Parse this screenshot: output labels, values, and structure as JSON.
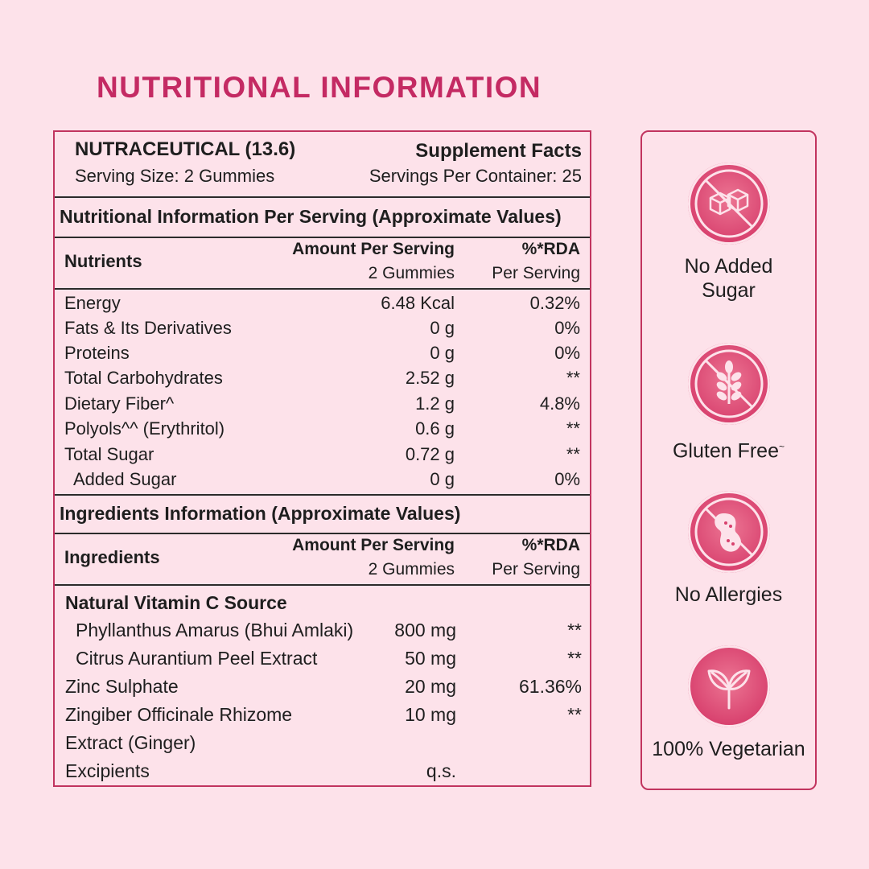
{
  "title": "NUTRITIONAL INFORMATION",
  "header": {
    "product": "NUTRACEUTICAL (13.6)",
    "serving_size": "Serving Size: 2 Gummies",
    "facts_label": "Supplement Facts",
    "servings_per_container": "Servings Per Container: 25"
  },
  "nutrition_section_title": "Nutritional Information Per Serving (Approximate Values)",
  "nutrition_columns": {
    "name": "Nutrients",
    "amount": "Amount Per Serving",
    "amount_sub": "2 Gummies",
    "rda": "%*RDA",
    "rda_sub": "Per Serving"
  },
  "nutrients": [
    {
      "name": "Energy",
      "amount": "6.48 Kcal",
      "rda": "0.32%"
    },
    {
      "name": "Fats & Its Derivatives",
      "amount": "0 g",
      "rda": "0%"
    },
    {
      "name": "Proteins",
      "amount": "0 g",
      "rda": "0%"
    },
    {
      "name": "Total Carbohydrates",
      "amount": "2.52 g",
      "rda": "**"
    },
    {
      "name": "Dietary Fiber^",
      "amount": "1.2 g",
      "rda": "4.8%"
    },
    {
      "name": "Polyols^^ (Erythritol)",
      "amount": "0.6 g",
      "rda": "**"
    },
    {
      "name": "Total Sugar",
      "amount": "0.72 g",
      "rda": "**"
    },
    {
      "name": "Added Sugar",
      "amount": "0 g",
      "rda": "0%"
    }
  ],
  "ingredients_section_title": "Ingredients Information (Approximate Values)",
  "ingredient_columns": {
    "name": "Ingredients",
    "amount": "Amount Per Serving",
    "amount_sub": "2 Gummies",
    "rda": "%*RDA",
    "rda_sub": "Per Serving"
  },
  "ingredients": {
    "group_label": "Natural Vitamin C Source",
    "items": [
      {
        "name": "Phyllanthus Amarus (Bhui Amlaki)",
        "amount": "800 mg",
        "rda": "**"
      },
      {
        "name": "Citrus Aurantium Peel Extract",
        "amount": "50 mg",
        "rda": "**"
      },
      {
        "name": "Zinc Sulphate",
        "amount": "20 mg",
        "rda": "61.36%"
      },
      {
        "name": "Zingiber Officinale Rhizome",
        "amount": "10 mg",
        "rda": "**"
      },
      {
        "name": "Extract (Ginger)",
        "amount": "",
        "rda": ""
      },
      {
        "name": "Excipients",
        "amount": "q.s.",
        "rda": ""
      }
    ]
  },
  "badges": [
    {
      "icon": "no-sugar-icon",
      "label_line1": "No Added",
      "label_line2": "Sugar"
    },
    {
      "icon": "gluten-free-icon",
      "label_line1": "Gluten Free",
      "mark": "~"
    },
    {
      "icon": "no-allergies-icon",
      "label_line1": "No Allergies"
    },
    {
      "icon": "vegetarian-leaf-icon",
      "label_line1": "100% Vegetarian"
    }
  ],
  "colors": {
    "accent": "#c42a63",
    "border": "#c1345f",
    "background": "#fde2ea",
    "badge_fill": "#d8416e"
  }
}
